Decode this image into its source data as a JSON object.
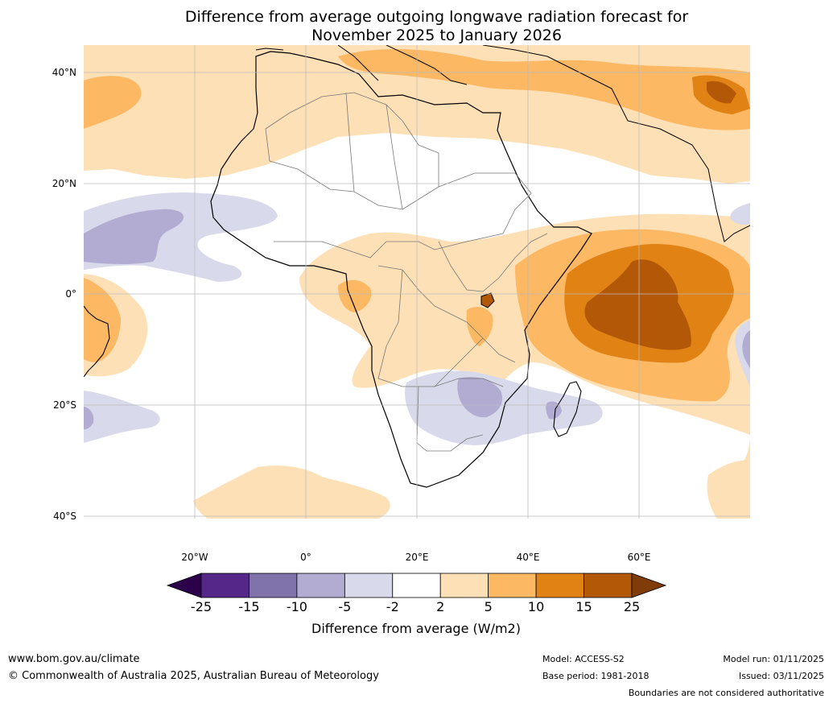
{
  "title": {
    "line1": "Difference from average outgoing longwave radiation forecast for",
    "line2": "November 2025 to January 2026"
  },
  "map": {
    "lat_labels": [
      "40°N",
      "20°N",
      "0°",
      "20°S",
      "40°S"
    ],
    "lon_labels": [
      "20°W",
      "0°",
      "20°E",
      "40°E",
      "60°E"
    ]
  },
  "colorbar": {
    "tick_labels": [
      "-25",
      "-15",
      "-10",
      "-5",
      "-2",
      "2",
      "5",
      "10",
      "15",
      "25"
    ],
    "colors": [
      "#2d004b",
      "#542788",
      "#8073ac",
      "#b2abd2",
      "#d8daeb",
      "#ffffff",
      "#fee0b6",
      "#fdb863",
      "#e08214",
      "#b35806",
      "#7f3b08"
    ],
    "label": "Difference from average (W/m2)"
  },
  "footer": {
    "website": "www.bom.gov.au/climate",
    "copyright": "© Commonwealth of Australia 2025, Australian Bureau of Meteorology",
    "model": "Model: ACCESS-S2",
    "base_period": "Base period: 1981-2018",
    "model_run": "Model run: 01/11/2025",
    "issued": "Issued: 03/11/2025",
    "disclaimer": "Boundaries are not considered authoritative"
  }
}
